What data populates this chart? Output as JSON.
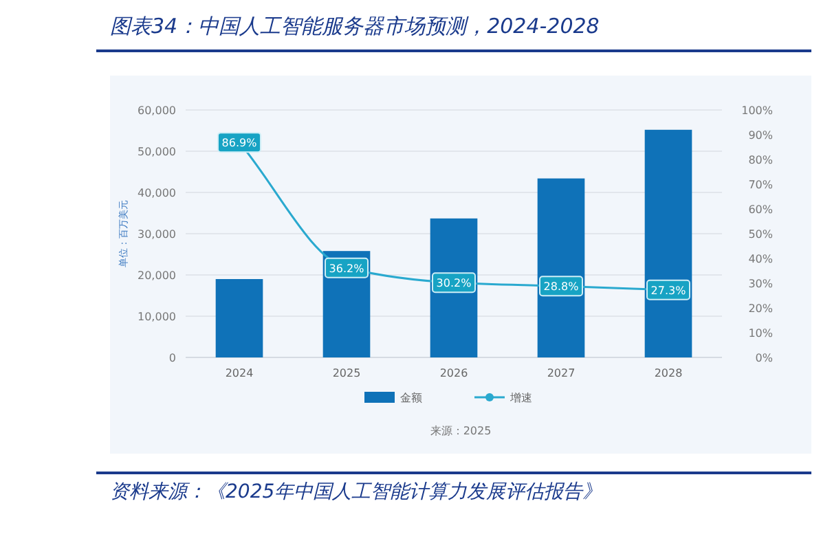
{
  "chart_data": {
    "type": "bar",
    "title": "图表34：中国人工智能服务器市场预测，2024-2028",
    "ylabel": "单位：百万美元",
    "categories": [
      "2024",
      "2025",
      "2026",
      "2027",
      "2028"
    ],
    "series": [
      {
        "name": "金额",
        "color": "#0f72b8",
        "values": [
          19000,
          25800,
          33700,
          43400,
          55200
        ]
      },
      {
        "name": "增速",
        "type": "line",
        "axis": "y2",
        "color": "#2aa9cf",
        "marker": "circle",
        "values": [
          86.9,
          36.2,
          30.2,
          28.8,
          27.3
        ],
        "value_labels": [
          "86.9%",
          "36.2%",
          "30.2%",
          "28.8%",
          "27.3%"
        ]
      }
    ],
    "ylim": [
      0,
      60000
    ],
    "yticks": [
      {
        "value": 0,
        "label": "0"
      },
      {
        "value": 10000,
        "label": "10,000"
      },
      {
        "value": 20000,
        "label": "20,000"
      },
      {
        "value": 30000,
        "label": "30,000"
      },
      {
        "value": 40000,
        "label": "40,000"
      },
      {
        "value": 50000,
        "label": "50,000"
      },
      {
        "value": 60000,
        "label": "60,000"
      }
    ],
    "y2lim": [
      0,
      100
    ],
    "y2ticks": [
      {
        "value": 0,
        "label": "0%"
      },
      {
        "value": 10,
        "label": "10%"
      },
      {
        "value": 20,
        "label": "20%"
      },
      {
        "value": 30,
        "label": "30%"
      },
      {
        "value": 40,
        "label": "40%"
      },
      {
        "value": 50,
        "label": "50%"
      },
      {
        "value": 60,
        "label": "60%"
      },
      {
        "value": 70,
        "label": "70%"
      },
      {
        "value": 80,
        "label": "80%"
      },
      {
        "value": 90,
        "label": "90%"
      },
      {
        "value": 100,
        "label": "100%"
      }
    ],
    "grid": "y",
    "legend": "bottom",
    "annotations": [
      "来源：2025",
      "资料来源：《2025年中国人工智能计算力发展评估报告》"
    ]
  }
}
